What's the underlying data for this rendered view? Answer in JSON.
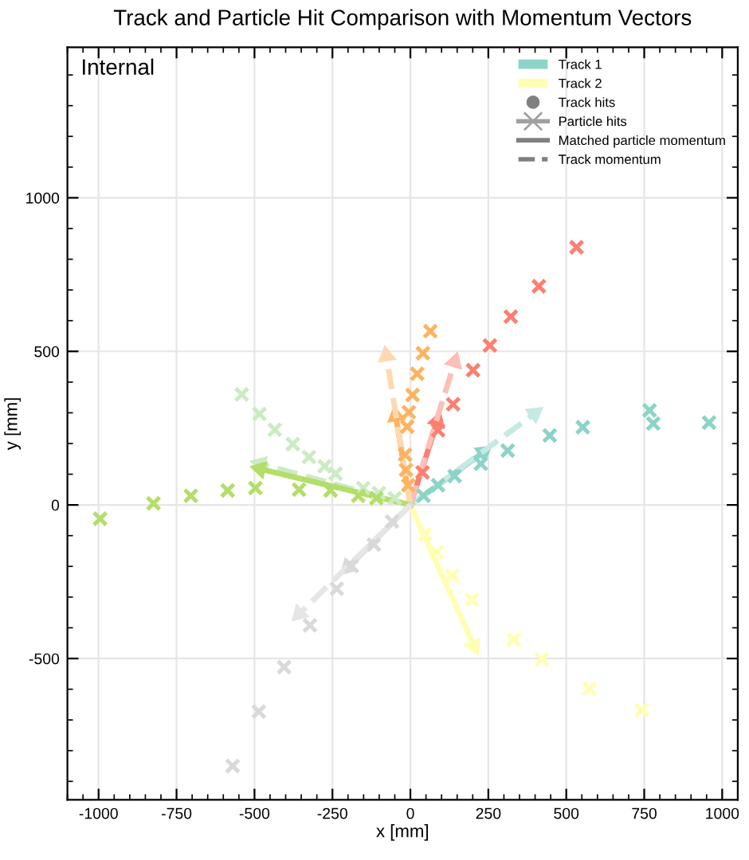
{
  "chart_data": {
    "type": "scatter",
    "title": "Track and Particle Hit Comparison with Momentum Vectors",
    "xlabel": "x [mm]",
    "ylabel": "y [mm]",
    "annotations": [
      "Internal"
    ],
    "xlim": [
      -1100,
      1050
    ],
    "ylim": [
      -960,
      1490
    ],
    "xticks": [
      -1000,
      -750,
      -500,
      -250,
      0,
      250,
      500,
      750,
      1000
    ],
    "yticks": [
      -500,
      0,
      500,
      1000
    ],
    "grid": true,
    "legend": "top right",
    "series": [
      {
        "name": "Track 1",
        "marker": "cross",
        "color": "#8dd3c7",
        "x": [
          958,
          767,
          779,
          553,
          447,
          312,
          226,
          142,
          89,
          42
        ],
        "values": [
          268,
          308,
          265,
          253,
          226,
          177,
          134,
          94,
          64,
          30
        ]
      },
      {
        "type": "line",
        "line_style": "solid",
        "color": "#8dd3c7",
        "x": [
          0,
          235
        ],
        "values": [
          0,
          172
        ]
      },
      {
        "type": "line",
        "line_style": "dashed",
        "color": "#c6e9e3",
        "x": [
          0,
          399
        ],
        "values": [
          0,
          298
        ]
      },
      {
        "name": "Track 2",
        "marker": "cross",
        "color": "#ffffb3",
        "x": [
          742,
          574,
          422,
          332,
          198,
          134,
          84,
          47
        ],
        "values": [
          -668,
          -598,
          -503,
          -439,
          -308,
          -230,
          -154,
          -95
        ]
      },
      {
        "type": "line",
        "line_style": "solid",
        "color": "#ffffb3",
        "x": [
          0,
          204
        ],
        "values": [
          0,
          -459
        ]
      },
      {
        "marker": "cross",
        "color": "#fb8072",
        "x": [
          533,
          412,
          322,
          255,
          201,
          137,
          89,
          39
        ],
        "values": [
          839,
          712,
          613,
          519,
          439,
          328,
          243,
          106
        ]
      },
      {
        "type": "line",
        "line_style": "solid",
        "color": "#fb8072",
        "x": [
          0,
          87
        ],
        "values": [
          0,
          273
        ]
      },
      {
        "type": "line",
        "line_style": "dashed",
        "color": "#fdbfb8",
        "x": [
          0,
          142
        ],
        "values": [
          0,
          466
        ]
      },
      {
        "marker": "cross",
        "color": "#fdb462",
        "x": [
          64,
          40,
          22,
          7,
          -5,
          -10,
          -17,
          -14,
          -7
        ],
        "values": [
          566,
          494,
          427,
          358,
          302,
          255,
          164,
          114,
          64
        ]
      },
      {
        "type": "line",
        "line_style": "solid",
        "color": "#fdb462",
        "x": [
          0,
          -47
        ],
        "values": [
          0,
          290
        ]
      },
      {
        "type": "line",
        "line_style": "dashed",
        "color": "#fed9b0",
        "x": [
          0,
          -77
        ],
        "values": [
          0,
          486
        ]
      },
      {
        "marker": "cross",
        "color": "#ccebc5",
        "x": [
          -541,
          -484,
          -435,
          -377,
          -325,
          -275,
          -240,
          -151,
          -101,
          -50
        ],
        "values": [
          360,
          296,
          245,
          198,
          156,
          126,
          102,
          55,
          39,
          22
        ]
      },
      {
        "type": "line",
        "line_style": "dashed",
        "color": "#ccebc5",
        "x": [
          0,
          -482
        ],
        "values": [
          0,
          134
        ]
      },
      {
        "marker": "cross",
        "color": "#b3de69",
        "x": [
          -995,
          -824,
          -704,
          -586,
          -497,
          -357,
          -256,
          -167,
          -109
        ],
        "values": [
          -45,
          5,
          30,
          47,
          55,
          50,
          47,
          30,
          22
        ]
      },
      {
        "type": "line",
        "line_style": "solid",
        "color": "#b3de69",
        "x": [
          0,
          -482
        ],
        "values": [
          0,
          117
        ]
      },
      {
        "marker": "cross",
        "color": "#d9d9d9",
        "x": [
          -570,
          -486,
          -405,
          -322,
          -236,
          -188,
          -117,
          -59
        ],
        "values": [
          -850,
          -673,
          -528,
          -392,
          -273,
          -199,
          -129,
          -54
        ]
      },
      {
        "type": "line",
        "line_style": "solid",
        "color": "#d9d9d9",
        "x": [
          0,
          -201
        ],
        "values": [
          0,
          -204
        ]
      },
      {
        "type": "line",
        "line_style": "dashed",
        "color": "#e6e6e6",
        "x": [
          0,
          -357
        ],
        "values": [
          0,
          -355
        ]
      },
      {
        "name": "Track hits",
        "marker": "circle",
        "color": "#808080"
      },
      {
        "name": "Particle hits",
        "type": "line",
        "marker": "cross",
        "line_style": "solid",
        "color": "#a0a0a0"
      },
      {
        "name": "Matched particle momentum",
        "type": "line",
        "line_style": "solid",
        "color": "#808080"
      },
      {
        "name": "Track momentum",
        "type": "line",
        "line_style": "dashed",
        "color": "#808080"
      }
    ]
  }
}
